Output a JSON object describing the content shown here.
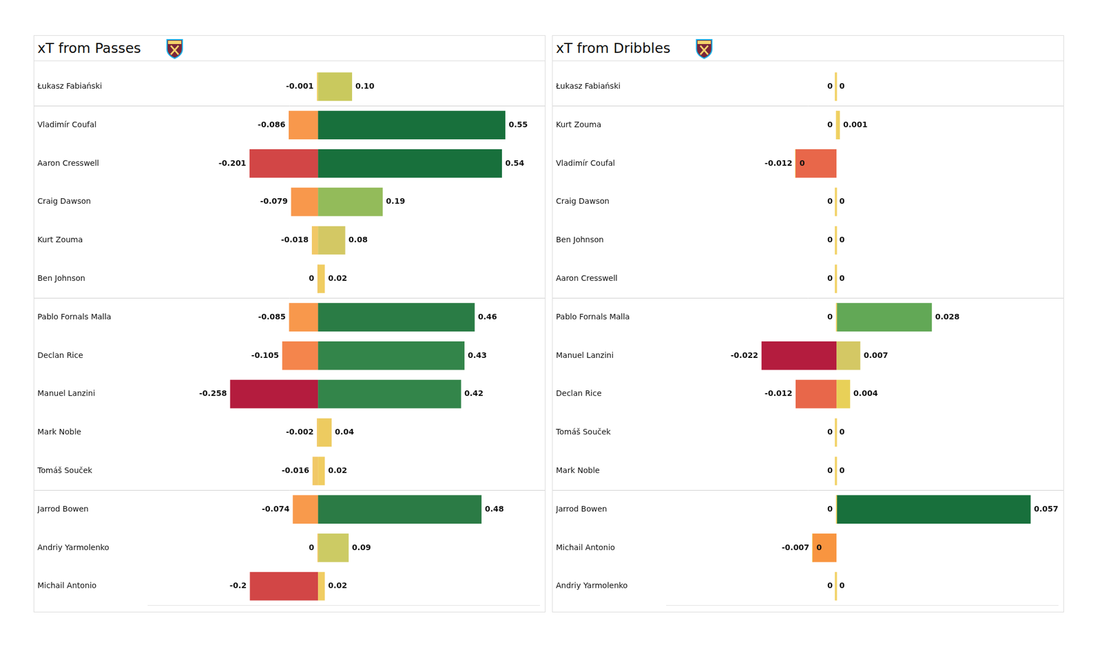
{
  "chart_data": [
    {
      "type": "bar",
      "orientation": "horizontal",
      "stacked": true,
      "data_labels": true,
      "tick_labels": "y",
      "grid": false,
      "title": "xT from Passes",
      "categories": [
        "Łukasz Fabiański",
        "Vladimír Coufal",
        "Aaron Cresswell",
        "Craig Dawson",
        "Kurt Zouma",
        "Ben Johnson",
        "Pablo Fornals Malla",
        "Declan Rice",
        "Manuel Lanzini",
        "Mark Noble",
        "Tomáš Souček",
        "Jarrod Bowen",
        "Andriy Yarmolenko",
        "Michail Antonio"
      ],
      "xlim": [
        -0.5,
        0.65
      ],
      "series": [
        {
          "values": [
            -0.001,
            -0.086,
            -0.201,
            -0.079,
            -0.018,
            0,
            -0.085,
            -0.105,
            -0.258,
            -0.002,
            -0.016,
            -0.074,
            0,
            -0.2
          ],
          "value_labels": [
            "-0.001",
            "-0.086",
            "-0.201",
            "-0.079",
            "-0.018",
            "0",
            "-0.085",
            "-0.105",
            "-0.258",
            "-0.002",
            "-0.016",
            "-0.074",
            "0",
            "-0.2"
          ],
          "colors": [
            "#f3d064",
            "#f8984c",
            "#d24646",
            "#f8984c",
            "#f1c866",
            "#f1c866",
            "#f8984c",
            "#f4854c",
            "#b41c3e",
            "#f1c866",
            "#f1c866",
            "#f89a4c",
            "#f1c866",
            "#d24646"
          ]
        },
        {
          "values": [
            0.1,
            0.55,
            0.54,
            0.19,
            0.08,
            0.02,
            0.46,
            0.43,
            0.42,
            0.04,
            0.02,
            0.48,
            0.09,
            0.02
          ],
          "value_labels": [
            "0.10",
            "0.55",
            "0.54",
            "0.19",
            "0.08",
            "0.02",
            "0.46",
            "0.43",
            "0.42",
            "0.04",
            "0.02",
            "0.48",
            "0.09",
            "0.02"
          ],
          "colors": [
            "#c9c95e",
            "#18703c",
            "#18703c",
            "#93bb5a",
            "#d3c864",
            "#f0cd62",
            "#2a7c45",
            "#33854a",
            "#33854a",
            "#edcb60",
            "#f0cd62",
            "#2b7b45",
            "#cccb64",
            "#f0cd62"
          ]
        }
      ]
    },
    {
      "type": "bar",
      "orientation": "horizontal",
      "stacked": true,
      "data_labels": true,
      "tick_labels": "y",
      "grid": false,
      "title": "xT from Dribbles",
      "categories": [
        "Łukasz Fabiański",
        "Kurt Zouma",
        "Vladimír Coufal",
        "Craig Dawson",
        "Ben Johnson",
        "Aaron Cresswell",
        "Pablo Fornals Malla",
        "Manuel Lanzini",
        "Declan Rice",
        "Tomáš Souček",
        "Mark Noble",
        "Jarrod Bowen",
        "Michail Antonio",
        "Andriy Yarmolenko"
      ],
      "xlim": [
        -0.05,
        0.065
      ],
      "series": [
        {
          "values": [
            0,
            0,
            -0.012,
            0,
            0,
            0,
            0,
            -0.022,
            -0.012,
            0,
            0,
            0,
            -0.007,
            0
          ],
          "value_labels": [
            "0",
            "0",
            "-0.012",
            "0",
            "0",
            "0",
            "0",
            "-0.022",
            "-0.012",
            "0",
            "0",
            "0",
            "-0.007",
            "0"
          ],
          "colors": [
            "#f2d266",
            "#f2d266",
            "#e8674a",
            "#f2d266",
            "#f2d266",
            "#f2d266",
            "#f2d266",
            "#b41c3e",
            "#e8674a",
            "#f2d266",
            "#f2d266",
            "#f2d266",
            "#f89540",
            "#f2d266"
          ]
        },
        {
          "values": [
            0,
            0.001,
            0,
            0,
            0,
            0,
            0.028,
            0.007,
            0.004,
            0,
            0,
            0.057,
            0,
            0
          ],
          "value_labels": [
            "0",
            "0.001",
            "0",
            "0",
            "0",
            "0",
            "0.028",
            "0.007",
            "0.004",
            "0",
            "0",
            "0.057",
            "0",
            "0"
          ],
          "colors": [
            "#f2d266",
            "#eed062",
            "#f2d266",
            "#f2d266",
            "#f2d266",
            "#f2d266",
            "#62a856",
            "#d4c864",
            "#e8d058",
            "#f2d266",
            "#f2d266",
            "#18703c",
            "#f2d266",
            "#f2d266"
          ]
        }
      ]
    }
  ]
}
